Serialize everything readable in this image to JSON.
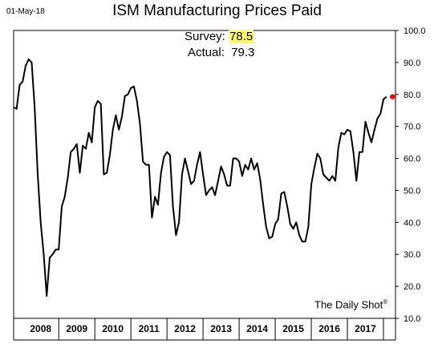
{
  "header": {
    "date_stamp": "01-May-18",
    "watermark": "The Daily Shot",
    "watermark_mark": "®"
  },
  "annotations": {
    "survey_label": "Survey:",
    "survey_value": "78.5",
    "actual_label": "Actual:",
    "actual_value": "79.3"
  },
  "colors": {
    "line": "#000000",
    "highlight_point": "#ff0000",
    "survey_highlight": "#ffff66"
  },
  "chart_data": {
    "type": "line",
    "title": "ISM Manufacturing Prices Paid",
    "xlabel": "",
    "ylabel": "",
    "ylim": [
      10,
      100
    ],
    "y_ticks": [
      "10.0",
      "20.0",
      "30.0",
      "40.0",
      "50.0",
      "60.0",
      "70.0",
      "80.0",
      "90.0",
      "100.0"
    ],
    "y_axis_position": "right",
    "grid": false,
    "x_tick_labels": [
      "2008",
      "2009",
      "2010",
      "2011",
      "2012",
      "2013",
      "2014",
      "2015",
      "2016",
      "2017"
    ],
    "x_start": "2007-10",
    "x_end": "2018-05",
    "series": [
      {
        "values": [
          76,
          75.5,
          83,
          84,
          89,
          91,
          90,
          76,
          55,
          40,
          30,
          17,
          29,
          30,
          31.5,
          31.5,
          45,
          48,
          54,
          62,
          63,
          64.5,
          55.5,
          64,
          63,
          68,
          65,
          76,
          78,
          77,
          55,
          55.5,
          61,
          69,
          73.5,
          69,
          73,
          79.5,
          80,
          82,
          82.5,
          78,
          71,
          59,
          58,
          58,
          41.5,
          48,
          45.5,
          55.5,
          60.5,
          62,
          61,
          45,
          36,
          40,
          55,
          60,
          56,
          52,
          53,
          58,
          62,
          55,
          48.5,
          50,
          51,
          48.5,
          53,
          57.5,
          55,
          51.5,
          51.5,
          60,
          60,
          59,
          54.5,
          58,
          56.5,
          60,
          56.5,
          58.5,
          53.5,
          45.5,
          38.5,
          35,
          35.5,
          39.5,
          41,
          49,
          49.5,
          45,
          39.5,
          38,
          40,
          36,
          34,
          34,
          38.5,
          52,
          57,
          61.5,
          60,
          55,
          54,
          53,
          54.5,
          53,
          63.5,
          68,
          67.5,
          69,
          68.5,
          62,
          53,
          62,
          62,
          71.5,
          68,
          65,
          69,
          72.5,
          74,
          78.5,
          79.3
        ]
      }
    ],
    "highlight_point": {
      "x": "2018-04",
      "y": 79.3
    }
  }
}
